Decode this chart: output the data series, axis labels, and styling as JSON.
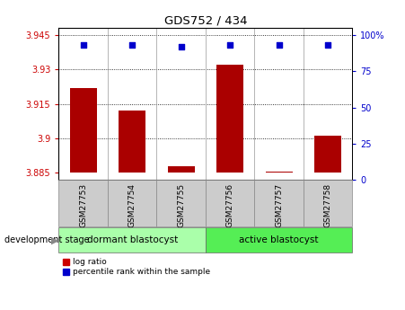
{
  "title": "GDS752 / 434",
  "samples": [
    "GSM27753",
    "GSM27754",
    "GSM27755",
    "GSM27756",
    "GSM27757",
    "GSM27758"
  ],
  "log_ratios": [
    3.922,
    3.912,
    3.888,
    3.932,
    3.8855,
    3.901
  ],
  "percentile_ranks": [
    93,
    93,
    92,
    93,
    93,
    93
  ],
  "ylim_left": [
    3.882,
    3.948
  ],
  "ylim_right": [
    0,
    105
  ],
  "yticks_left": [
    3.885,
    3.9,
    3.915,
    3.93,
    3.945
  ],
  "yticks_right": [
    0,
    25,
    50,
    75,
    100
  ],
  "ytick_labels_left": [
    "3.885",
    "3.9",
    "3.915",
    "3.93",
    "3.945"
  ],
  "ytick_labels_right": [
    "0",
    "25",
    "50",
    "75",
    "100%"
  ],
  "bar_color": "#aa0000",
  "dot_color": "#0000cc",
  "groups": [
    {
      "label": "dormant blastocyst",
      "indices": [
        0,
        1,
        2
      ],
      "color": "#aaffaa"
    },
    {
      "label": "active blastocyst",
      "indices": [
        3,
        4,
        5
      ],
      "color": "#55ee55"
    }
  ],
  "group_label_prefix": "development stage",
  "legend_items": [
    {
      "label": "log ratio",
      "color": "#cc0000"
    },
    {
      "label": "percentile rank within the sample",
      "color": "#0000cc"
    }
  ],
  "bar_color_dark": "#cc0000",
  "grid_linestyle": "dotted",
  "bar_width": 0.55,
  "baseline": 3.885
}
